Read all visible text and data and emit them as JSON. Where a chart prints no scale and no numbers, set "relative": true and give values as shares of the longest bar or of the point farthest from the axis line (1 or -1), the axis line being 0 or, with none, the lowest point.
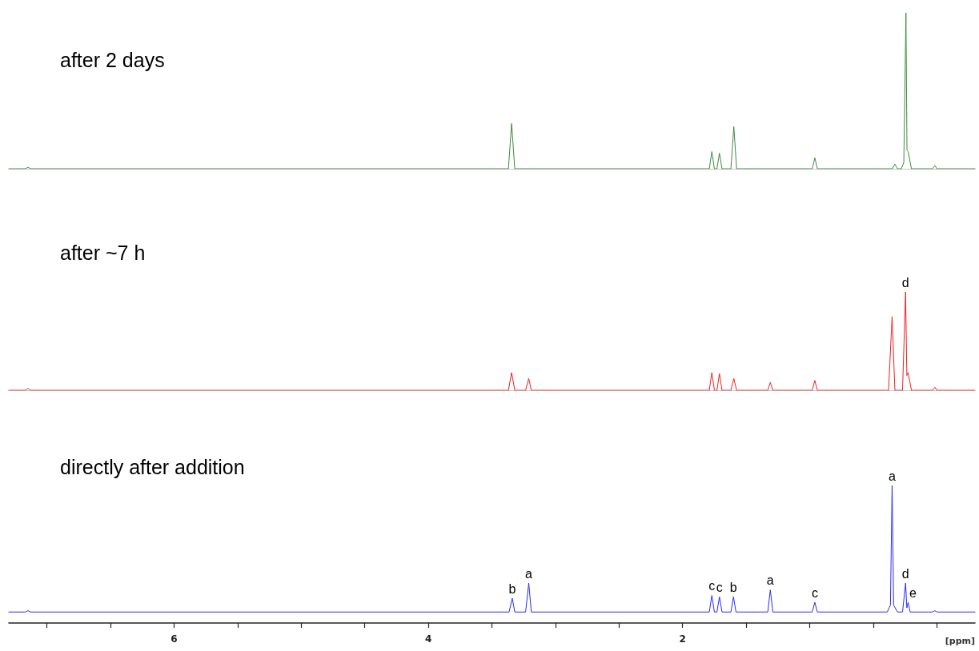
{
  "chart_data": [
    {
      "type": "line",
      "title": "after 2 days",
      "relative": true,
      "xlim": [
        7.3,
        -0.3
      ],
      "tick_labels": false,
      "series": [
        {
          "color": "#3f8a3f",
          "x": [
            7.3,
            7.17,
            7.15,
            7.13,
            3.37,
            3.345,
            3.32,
            1.79,
            1.77,
            1.75,
            1.73,
            1.71,
            1.69,
            1.62,
            1.597,
            1.575,
            0.98,
            0.96,
            0.94,
            0.35,
            0.33,
            0.31,
            0.28,
            0.26,
            0.243,
            0.235,
            0.226,
            0.2,
            0.035,
            0.015,
            0,
            -0.3
          ],
          "values": [
            0,
            0,
            0.01,
            0,
            0,
            0.29,
            0,
            0,
            0.11,
            0,
            0,
            0.1,
            0,
            0,
            0.27,
            0,
            0,
            0.07,
            0,
            0,
            0.03,
            0,
            0,
            0.04,
            1,
            0.12,
            0.11,
            0,
            0,
            0.02,
            0,
            0
          ]
        }
      ]
    },
    {
      "type": "line",
      "title": "after ~7 h",
      "relative": true,
      "xlim": [
        7.3,
        -0.3
      ],
      "tick_labels": false,
      "annotations": [
        {
          "text": "d",
          "x": 0.246,
          "y": 1
        }
      ],
      "series": [
        {
          "color": "#f02020",
          "x": [
            7.3,
            7.17,
            7.15,
            7.13,
            3.37,
            3.345,
            3.32,
            3.235,
            3.21,
            3.19,
            1.79,
            1.77,
            1.75,
            1.73,
            1.71,
            1.69,
            1.62,
            1.597,
            1.575,
            1.33,
            1.31,
            1.29,
            0.98,
            0.96,
            0.94,
            0.38,
            0.352,
            0.33,
            0.27,
            0.246,
            0.236,
            0.226,
            0.2,
            0.035,
            0.015,
            0,
            -0.3
          ],
          "values": [
            0,
            0,
            0.02,
            0,
            0,
            0.18,
            0,
            0,
            0.12,
            0,
            0,
            0.18,
            0,
            0,
            0.17,
            0,
            0,
            0.12,
            0,
            0,
            0.08,
            0,
            0,
            0.1,
            0,
            0,
            0.75,
            0,
            0,
            1,
            0.15,
            0.18,
            0,
            0,
            0.03,
            0,
            0
          ]
        }
      ]
    },
    {
      "type": "line",
      "title": "directly after addition",
      "xlabel": "[ppm]",
      "relative": true,
      "xlim": [
        7.3,
        -0.3
      ],
      "xticks": [
        {
          "value": 7,
          "label": null
        },
        {
          "value": 6.5,
          "label": null
        },
        6,
        {
          "value": 5.5,
          "label": null
        },
        {
          "value": 5,
          "label": null
        },
        {
          "value": 4.5,
          "label": null
        },
        4,
        {
          "value": 3.5,
          "label": null
        },
        {
          "value": 3,
          "label": null
        },
        {
          "value": 2.5,
          "label": null
        },
        2,
        {
          "value": 1.5,
          "label": null
        },
        {
          "value": 1,
          "label": null
        },
        {
          "value": 0.5,
          "label": null
        },
        {
          "value": 0,
          "label": null
        }
      ],
      "tick_labels": "x",
      "annotations": [
        {
          "text": "b",
          "x": 3.34,
          "y": 0.18
        },
        {
          "text": "a",
          "x": 3.21,
          "y": 0.29
        },
        {
          "text": "c",
          "x": 1.77,
          "y": 0.2
        },
        {
          "text": "c",
          "x": 1.71,
          "y": 0.19
        },
        {
          "text": "b",
          "x": 1.6,
          "y": 0.19
        },
        {
          "text": "a",
          "x": 1.31,
          "y": 0.24
        },
        {
          "text": "c",
          "x": 0.96,
          "y": 0.15
        },
        {
          "text": "a",
          "x": 0.352,
          "y": 1
        },
        {
          "text": "d",
          "x": 0.246,
          "y": 0.29
        },
        {
          "text": "e",
          "x": 0.226,
          "y": 0.15
        }
      ],
      "series": [
        {
          "color": "#2a2aff",
          "x": [
            7.3,
            7.17,
            7.15,
            7.13,
            3.365,
            3.34,
            3.32,
            3.235,
            3.21,
            3.19,
            1.79,
            1.77,
            1.75,
            1.73,
            1.71,
            1.69,
            1.62,
            1.6,
            1.58,
            1.33,
            1.31,
            1.29,
            0.98,
            0.96,
            0.94,
            0.39,
            0.365,
            0.352,
            0.34,
            0.31,
            0.27,
            0.246,
            0.236,
            0.226,
            0.21,
            0.035,
            0.015,
            0,
            -0.3
          ],
          "values": [
            0.08,
            0.08,
            0.09,
            0.08,
            0.08,
            0.18,
            0.08,
            0.08,
            0.29,
            0.08,
            0.08,
            0.2,
            0.08,
            0.08,
            0.19,
            0.08,
            0.08,
            0.19,
            0.08,
            0.08,
            0.24,
            0.08,
            0.08,
            0.15,
            0.08,
            0.08,
            0.13,
            1,
            0.13,
            0.08,
            0.08,
            0.29,
            0.11,
            0.15,
            0.08,
            0.08,
            0.09,
            0.08,
            0.08
          ]
        }
      ]
    }
  ]
}
